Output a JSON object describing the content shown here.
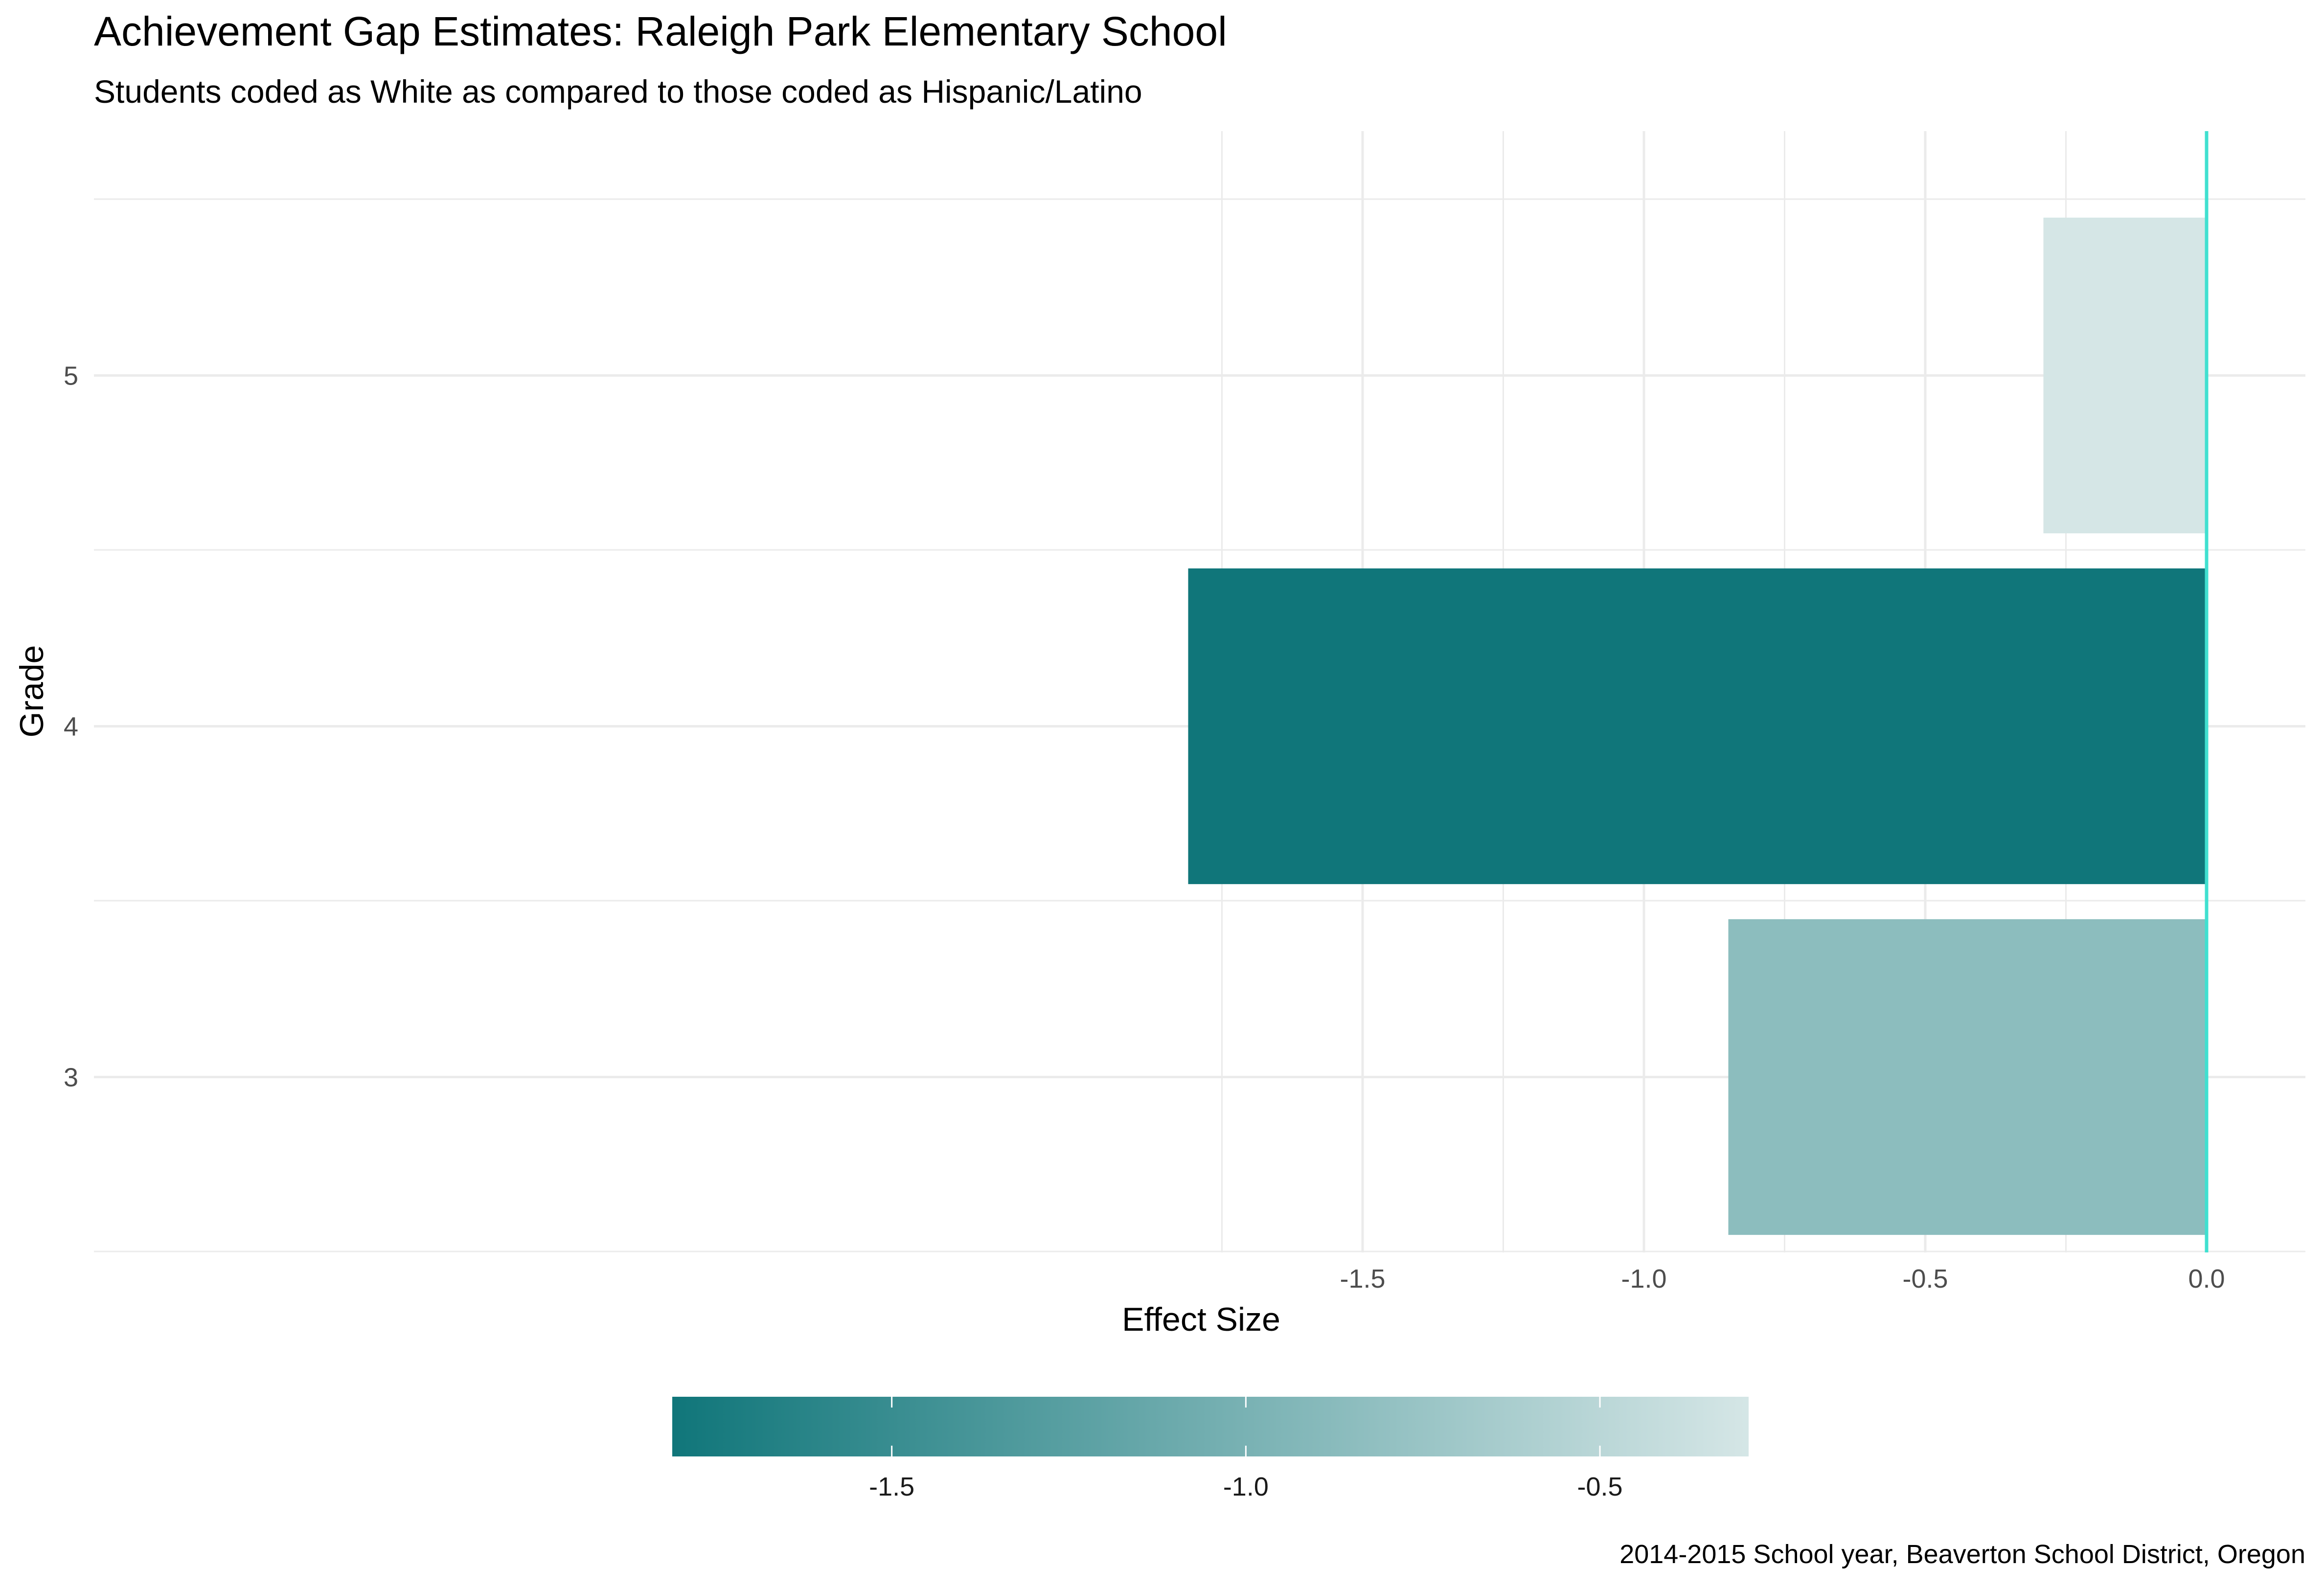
{
  "chart_data": {
    "type": "bar",
    "orientation": "horizontal",
    "title": "Achievement Gap Estimates: Raleigh Park Elementary School",
    "subtitle": "Students coded as White as compared to those coded as Hispanic/Latino",
    "xlabel": "Effect Size",
    "ylabel": "Grade",
    "caption": "2014-2015 School year, Beaverton School District, Oregon",
    "categories": [
      "3",
      "4",
      "5"
    ],
    "values": [
      -0.85,
      -1.81,
      -0.29
    ],
    "xlim": [
      -1.89,
      0.09
    ],
    "x_ticks": [
      -1.5,
      -1.0,
      -0.5,
      0.0
    ],
    "x_tick_labels": [
      "-1.5",
      "-1.0",
      "-0.5",
      "0.0"
    ],
    "reference_line": {
      "x": 0.0,
      "color": "#40E0D0"
    },
    "grid": true,
    "legend": {
      "type": "colorbar",
      "placement": "bottom",
      "range": [
        -1.81,
        -0.29
      ],
      "ticks": [
        -1.5,
        -1.0,
        -0.5
      ],
      "tick_labels": [
        "-1.5",
        "-1.0",
        "-0.5"
      ],
      "low_color": "#10767A",
      "high_color": "#D5E6E6"
    },
    "colors": {
      "low": "#10767A",
      "high": "#D5E6E6",
      "grid": "#EBEBEB",
      "reference": "#40E0D0"
    }
  }
}
